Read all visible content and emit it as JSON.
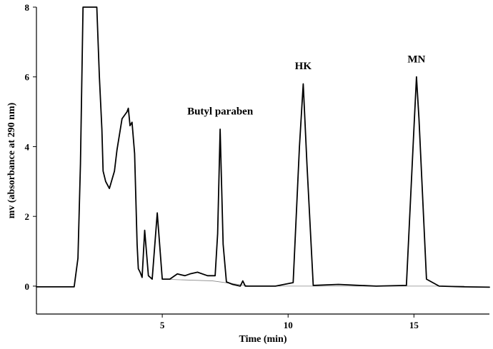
{
  "chart_data": {
    "type": "line",
    "xlabel": "Time (min)",
    "ylabel": "mv (absorbance at 290 nm)",
    "xlim": [
      0,
      18
    ],
    "ylim": [
      -0.8,
      8
    ],
    "xticks": [
      5,
      10,
      15
    ],
    "yticks": [
      0,
      2,
      4,
      6,
      8
    ],
    "grid": false,
    "annotations": [
      {
        "text": "Butyl paraben",
        "x": 7.3,
        "y": 4.55
      },
      {
        "text": "HK",
        "x": 10.6,
        "y": 5.85
      },
      {
        "text": "MN",
        "x": 15.1,
        "y": 6.05
      }
    ],
    "series": [
      {
        "x": [
          0.0,
          1.0,
          1.5,
          1.65,
          1.75,
          1.85,
          2.0,
          2.4,
          2.5,
          2.6,
          2.65,
          2.75,
          2.9,
          3.1,
          3.2,
          3.4,
          3.6,
          3.65,
          3.72,
          3.8,
          3.9,
          4.0,
          4.05,
          4.12,
          4.2,
          4.3,
          4.45,
          4.6,
          4.8,
          5.0,
          5.3,
          5.6,
          5.9,
          6.1,
          6.4,
          6.8,
          7.1,
          7.2,
          7.3,
          7.42,
          7.55,
          7.8,
          8.1,
          8.2,
          8.3,
          8.6,
          9.5,
          10.2,
          10.45,
          10.6,
          10.75,
          11.0,
          12.0,
          13.5,
          14.7,
          15.0,
          15.1,
          15.2,
          15.5,
          16.0,
          17.0,
          18.0
        ],
        "y": [
          -0.02,
          -0.02,
          -0.02,
          0.8,
          3.5,
          8,
          8,
          8,
          6.0,
          4.5,
          3.3,
          3.0,
          2.8,
          3.3,
          3.9,
          4.8,
          5.0,
          5.1,
          4.6,
          4.7,
          3.8,
          1.2,
          0.5,
          0.4,
          0.25,
          1.6,
          0.3,
          0.2,
          2.1,
          0.2,
          0.2,
          0.35,
          0.3,
          0.35,
          0.4,
          0.3,
          0.3,
          1.5,
          4.5,
          1.2,
          0.12,
          0.05,
          0.0,
          0.15,
          0.0,
          0.0,
          0.0,
          0.1,
          4.0,
          5.8,
          3.5,
          0.02,
          0.05,
          0.0,
          0.02,
          4.5,
          6.0,
          4.8,
          0.2,
          0.0,
          -0.02,
          -0.03
        ]
      }
    ]
  }
}
